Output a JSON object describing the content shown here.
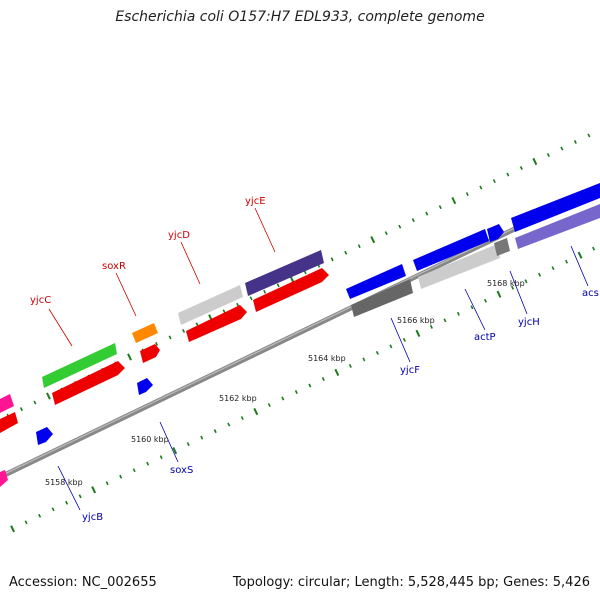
{
  "title": "Escherichia coli O157:H7 EDL933, complete genome",
  "accession_text": "Accession: NC_002655",
  "summary_text": "Topology: circular; Length: 5,528,445 bp; Genes: 5,426",
  "colors": {
    "backbone": "#888888",
    "tick": "#1a7a1a",
    "forward_label": "#cc0000",
    "reverse_label": "#0000aa"
  },
  "tick_labels": [
    "5158 kbp",
    "5160 kbp",
    "5162 kbp",
    "5164 kbp",
    "5166 kbp",
    "5168 kbp"
  ],
  "genes_forward": [
    {
      "name": "yjcC",
      "color": "#33cc33"
    },
    {
      "name": "soxR",
      "color": "#ff8800"
    },
    {
      "name": "yjcD",
      "color": "#cccccc"
    },
    {
      "name": "yjcE",
      "color": "#443388"
    }
  ],
  "genes_reverse": [
    {
      "name": "yjcB",
      "color": "#0000ee"
    },
    {
      "name": "soxS",
      "color": "#0000ee"
    },
    {
      "name": "yjcF",
      "color": "#0000ee"
    },
    {
      "name": "actP",
      "color": "#0000ee"
    },
    {
      "name": "yjcH",
      "color": "#0000ee"
    },
    {
      "name": "acs",
      "color": "#0000ee"
    }
  ]
}
